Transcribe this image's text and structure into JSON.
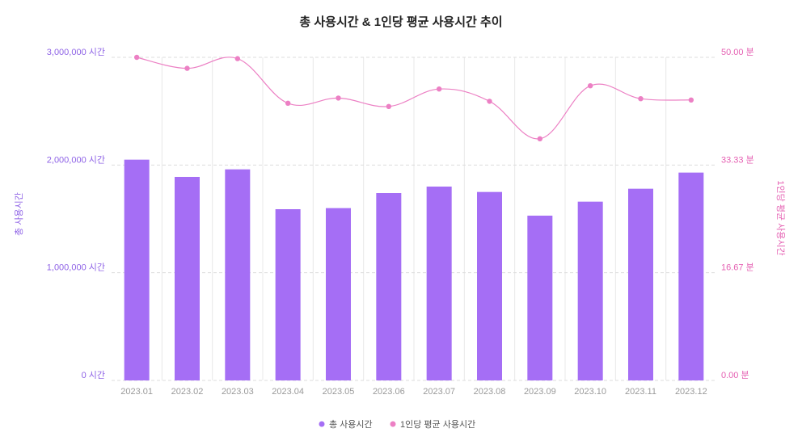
{
  "chart_data": {
    "type": "bar",
    "title": "총 사용시간 & 1인당 평균 사용시간 추이",
    "categories": [
      "2023.01",
      "2023.02",
      "2023.03",
      "2023.04",
      "2023.05",
      "2023.06",
      "2023.07",
      "2023.08",
      "2023.09",
      "2023.10",
      "2023.11",
      "2023.12"
    ],
    "series": [
      {
        "name": "총 사용시간",
        "type": "bar",
        "axis": "left",
        "color": "#a56ef5",
        "values": [
          2050000,
          1890000,
          1960000,
          1590000,
          1600000,
          1740000,
          1800000,
          1750000,
          1530000,
          1660000,
          1780000,
          1930000
        ]
      },
      {
        "name": "1인당 평균 사용시간",
        "type": "line",
        "axis": "right",
        "color": "#ec80c4",
        "values": [
          50.0,
          48.3,
          49.8,
          42.9,
          43.7,
          42.4,
          45.1,
          43.2,
          37.4,
          45.6,
          43.6,
          43.4
        ]
      }
    ],
    "ylabel": "총 사용시간",
    "y2label": "1인당 평균 사용시간",
    "ylim": [
      0,
      3000000
    ],
    "y2lim": [
      0,
      50
    ],
    "yticks": [
      "0 시간",
      "1,000,000 시간",
      "2,000,000 시간",
      "3,000,000 시간"
    ],
    "y2ticks": [
      "0.00 분",
      "16.67 분",
      "33.33 분",
      "50.00 분"
    ],
    "grid": true,
    "legend": "bottom-center"
  }
}
